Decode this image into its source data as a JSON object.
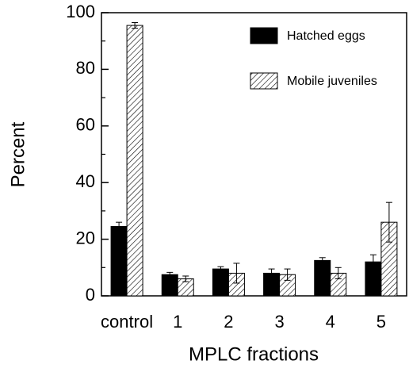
{
  "chart_data": {
    "type": "bar",
    "xlabel": "MPLC fractions",
    "ylabel": "Percent",
    "categories": [
      "control",
      "1",
      "2",
      "3",
      "4",
      "5"
    ],
    "series": [
      {
        "name": "Hatched eggs",
        "color": "#000000",
        "pattern": "solid",
        "values": [
          24.5,
          7.5,
          9.5,
          8,
          12.5,
          12
        ],
        "errors": [
          1.5,
          0.8,
          0.8,
          1.5,
          1,
          2.5
        ]
      },
      {
        "name": "Mobile juveniles",
        "color": "#000000",
        "pattern": "hatch",
        "values": [
          95.5,
          6,
          8,
          7.5,
          8,
          26
        ],
        "errors": [
          1,
          1,
          3.5,
          2,
          2,
          7
        ]
      }
    ],
    "ylim": [
      0,
      100
    ],
    "yticks": [
      0,
      20,
      40,
      60,
      80,
      100
    ],
    "yminorticks": [
      10,
      30,
      50,
      70,
      90
    ],
    "legend": "upper right"
  }
}
